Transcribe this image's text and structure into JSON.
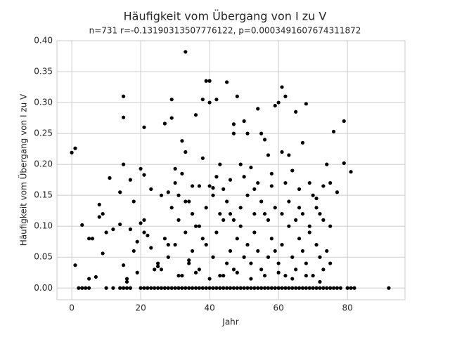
{
  "chart_data": {
    "type": "scatter",
    "title": "Häufigkeit vom Übergang von I zu V",
    "subtitle": "n=731 r=-0.13190313507776122, p=0.0003491607674311872",
    "x_label": "Jahr",
    "y_label": "Häufigkeit vom Übergang von I zu V",
    "color": "#000000",
    "grid": true,
    "xlim": [
      -4.3,
      96.7
    ],
    "ylim": [
      -0.019,
      0.4
    ],
    "xticks": [
      0,
      20,
      40,
      60,
      80
    ],
    "yticks": [
      {
        "value": 0,
        "label": "0.00"
      },
      {
        "value": 0.05,
        "label": "0.05"
      },
      {
        "value": 0.1,
        "label": "0.10"
      },
      {
        "value": 0.15,
        "label": "0.15"
      },
      {
        "value": 0.2,
        "label": "0.20"
      },
      {
        "value": 0.25,
        "label": "0.25"
      },
      {
        "value": 0.3,
        "label": "0.30"
      },
      {
        "value": 0.35,
        "label": "0.35"
      },
      {
        "value": 0.4,
        "label": "0.40"
      }
    ],
    "x": [
      0,
      1,
      1,
      3,
      5,
      5,
      6,
      7,
      8,
      8,
      9,
      9,
      10,
      11,
      12,
      14,
      14,
      15,
      15,
      15,
      15,
      16,
      16,
      17,
      17,
      18,
      18,
      19,
      19,
      20,
      20,
      21,
      21,
      21,
      21,
      22,
      23,
      23,
      24,
      25,
      25,
      26,
      27,
      27,
      28,
      28,
      29,
      29,
      30,
      30,
      31,
      32,
      32,
      33,
      33,
      34,
      35,
      35,
      36,
      37,
      38,
      39,
      40,
      40,
      40,
      41,
      42,
      43,
      44,
      45,
      46,
      47,
      47,
      48,
      49,
      50,
      51,
      52,
      53,
      54,
      55,
      56,
      57,
      58,
      59,
      59,
      60,
      61,
      61,
      62,
      63,
      64,
      65,
      66,
      67,
      68,
      69,
      70,
      71,
      72,
      73,
      74,
      75,
      76,
      77,
      79,
      79,
      81,
      2,
      3,
      4,
      5,
      10,
      12,
      14,
      15,
      16,
      17,
      20,
      21,
      22,
      23,
      24,
      25,
      26,
      27,
      28,
      29,
      30,
      31,
      32,
      33,
      34,
      35,
      36,
      37,
      38,
      39,
      40,
      41,
      42,
      43,
      44,
      45,
      46,
      47,
      48,
      49,
      50,
      51,
      52,
      53,
      54,
      55,
      56,
      57,
      58,
      59,
      60,
      61,
      62,
      63,
      64,
      65,
      66,
      67,
      68,
      69,
      70,
      71,
      72,
      73,
      74,
      75,
      76,
      77,
      78,
      80,
      81,
      82,
      92,
      26,
      28,
      30,
      31,
      33,
      34,
      35,
      36,
      37,
      38,
      39,
      41,
      42,
      43,
      44,
      45,
      46,
      47,
      48,
      49,
      50,
      51,
      52,
      53,
      54,
      55,
      56,
      57,
      58,
      60,
      61,
      62,
      63,
      64,
      65,
      66,
      67,
      68,
      69,
      70,
      71,
      72,
      73,
      74,
      75,
      29,
      31,
      33,
      35,
      37,
      39,
      41,
      43,
      45,
      47,
      49,
      51,
      53,
      55,
      57,
      59,
      61,
      63,
      65,
      67,
      69,
      71,
      73,
      75,
      32,
      36,
      40,
      44,
      48,
      52,
      56,
      60,
      64,
      68,
      72,
      42,
      46,
      50,
      54,
      58,
      62,
      66,
      38,
      34
    ],
    "values": [
      0.219,
      0.226,
      0.037,
      0.102,
      0.08,
      0.015,
      0.08,
      0.018,
      0.135,
      0.115,
      0.056,
      0.12,
      0.09,
      0.178,
      0.095,
      0.155,
      0.103,
      0.31,
      0.276,
      0.2,
      0.037,
      0.01,
      0.015,
      0.095,
      0.175,
      0.14,
      0.06,
      0.075,
      0.025,
      0.193,
      0.105,
      0.26,
      0.183,
      0.11,
      0.09,
      0.085,
      0.16,
      0.065,
      0.03,
      0.04,
      0.035,
      0.15,
      0.266,
      0.08,
      0.155,
      0.07,
      0.275,
      0.305,
      0.193,
      0.17,
      0.15,
      0.238,
      0.185,
      0.382,
      0.22,
      0.14,
      0.165,
      0.12,
      0.28,
      0.165,
      0.305,
      0.335,
      0.335,
      0.3,
      0.165,
      0.162,
      0.305,
      0.2,
      0.16,
      0.333,
      0.12,
      0.265,
      0.25,
      0.31,
      0.2,
      0.27,
      0.25,
      0.195,
      0.16,
      0.29,
      0.25,
      0.24,
      0.215,
      0.185,
      0.295,
      0.06,
      0.3,
      0.325,
      0.22,
      0.31,
      0.215,
      0.19,
      0.285,
      0.13,
      0.235,
      0.298,
      0.17,
      0.15,
      0.145,
      0.12,
      0.165,
      0.2,
      0.17,
      0.253,
      0.155,
      0.27,
      0.202,
      0.188,
      0,
      0,
      0,
      0,
      0,
      0,
      0,
      0,
      0,
      0,
      0,
      0,
      0,
      0,
      0,
      0,
      0,
      0,
      0,
      0,
      0,
      0,
      0,
      0,
      0,
      0,
      0,
      0,
      0,
      0,
      0,
      0,
      0,
      0,
      0,
      0,
      0,
      0,
      0,
      0,
      0,
      0,
      0,
      0,
      0,
      0,
      0,
      0,
      0,
      0,
      0,
      0,
      0,
      0,
      0,
      0,
      0,
      0,
      0,
      0,
      0,
      0,
      0,
      0,
      0,
      0,
      0,
      0,
      0,
      0,
      0,
      0,
      0,
      0.03,
      0.05,
      0.07,
      0.02,
      0.09,
      0.04,
      0.06,
      0.1,
      0.03,
      0.08,
      0.07,
      0.05,
      0.09,
      0.02,
      0.11,
      0.04,
      0.06,
      0.03,
      0.08,
      0.1,
      0.05,
      0.07,
      0.04,
      0.09,
      0.06,
      0.03,
      0.12,
      0.05,
      0.08,
      0.04,
      0.07,
      0.02,
      0.1,
      0.05,
      0.03,
      0.08,
      0.06,
      0.04,
      0.09,
      0.02,
      0.07,
      0.05,
      0.03,
      0.06,
      0.04,
      0.13,
      0.11,
      0.14,
      0.12,
      0.1,
      0.13,
      0.15,
      0.12,
      0.14,
      0.11,
      0.13,
      0.15,
      0.12,
      0.14,
      0.11,
      0.13,
      0.12,
      0.14,
      0.11,
      0.12,
      0.1,
      0.13,
      0.11,
      0.1,
      0.02,
      0.025,
      0.015,
      0.02,
      0.025,
      0.015,
      0.02,
      0.025,
      0.015,
      0.02,
      0.01,
      0.18,
      0.175,
      0.18,
      0.17,
      0.165,
      0.17,
      0.16,
      0.21,
      0.045
    ]
  }
}
